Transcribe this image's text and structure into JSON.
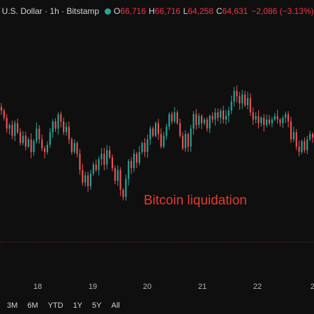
{
  "header": {
    "title": "/ U.S. Dollar · 1h · Bitstamp",
    "ohlc": [
      {
        "label": "O",
        "value": "66,716"
      },
      {
        "label": "H",
        "value": "66,716"
      },
      {
        "label": "L",
        "value": "64,258"
      },
      {
        "label": "C",
        "value": "64,631"
      }
    ],
    "change": "−2,086 (−3.13%)"
  },
  "annotation": "Bitcoin liquidation",
  "ranges": [
    "3M",
    "6M",
    "YTD",
    "1Y",
    "5Y",
    "All"
  ],
  "colors": {
    "up": "#26a69a",
    "down": "#ef5350",
    "background": "#0f0f0f",
    "annotation": "#e53935",
    "dotted_line": "#8a3b3b"
  },
  "chart_data": {
    "type": "candlestick",
    "x_ticks": [
      "18",
      "19",
      "20",
      "21",
      "22",
      "2"
    ],
    "reference_line_style": "dotted",
    "series_close": [
      66300,
      66100,
      65800,
      65900,
      65600,
      65950,
      65700,
      65400,
      65600,
      65300,
      65500,
      65150,
      65450,
      65800,
      65500,
      65250,
      65150,
      65350,
      65700,
      66000,
      65800,
      66200,
      66000,
      65700,
      65850,
      65500,
      65150,
      65400,
      65100,
      64650,
      64300,
      64500,
      64200,
      64550,
      64800,
      64650,
      64950,
      65100,
      64800,
      65200,
      65000,
      64700,
      64350,
      64650,
      64100,
      63900,
      64400,
      64900,
      64700,
      65100,
      64850,
      65150,
      65400,
      65150,
      65500,
      65800,
      65600,
      65950,
      65650,
      65300,
      65600,
      65850,
      66200,
      66000,
      66250,
      65950,
      65600,
      65250,
      65650,
      65300,
      65800,
      66200,
      65900,
      66150,
      65950,
      66050,
      65800,
      66150,
      66050,
      66250,
      66100,
      66300,
      66050,
      66150,
      66300,
      66550,
      66850,
      66700,
      66500,
      66750,
      66450,
      66650,
      66250,
      66050,
      66150,
      65950,
      66100,
      65900,
      66050,
      65950,
      66050,
      66150,
      66050,
      65950,
      66100,
      66200,
      66000,
      65500,
      65700,
      65300,
      65150,
      65450,
      65200,
      65500,
      65650,
      65550
    ]
  }
}
